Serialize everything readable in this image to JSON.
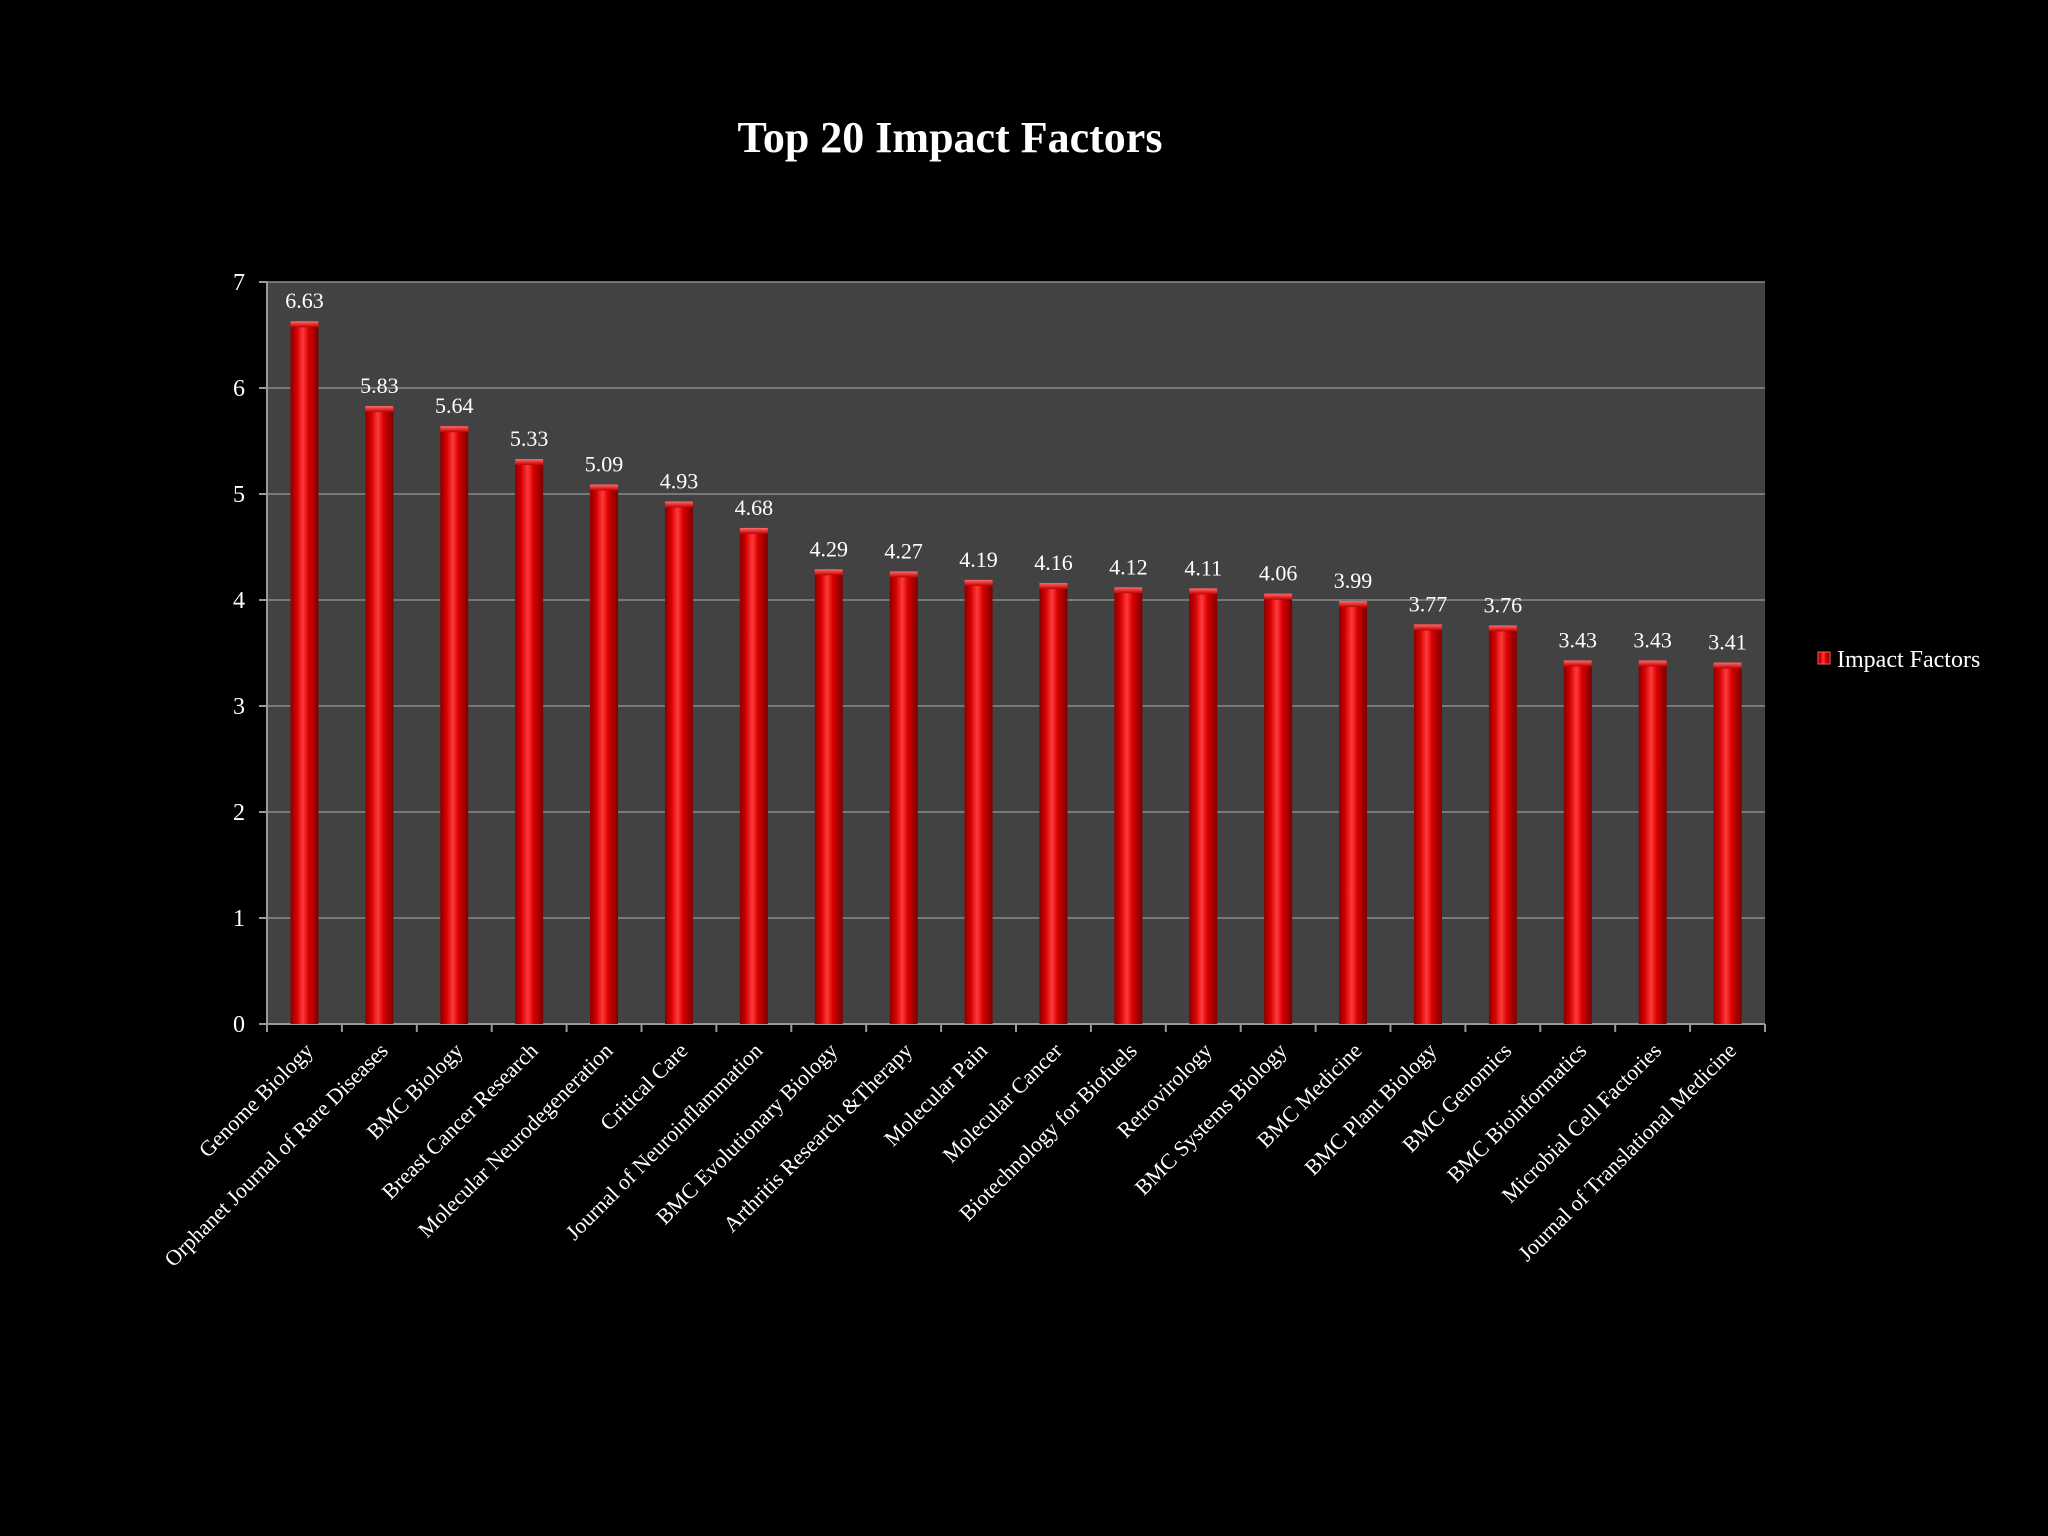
{
  "chart_data": {
    "type": "bar",
    "title": "Top 20 Impact Factors",
    "xlabel": "",
    "ylabel": "",
    "ylim": [
      0,
      7
    ],
    "yticks": [
      "0",
      "1",
      "2",
      "3",
      "4",
      "5",
      "6",
      "7"
    ],
    "grid": true,
    "legend_position": "right",
    "colors": {
      "bar": "#d40000",
      "bar_highlight": "#ff4a4a",
      "bar_shadow": "#7a0000",
      "plot_background": "#424242",
      "page_background": "#000000",
      "gridline": "#8a8a8a",
      "text": "#ffffff"
    },
    "categories": [
      "Genome Biology",
      "Orphanet Journal of Rare Diseases",
      "BMC Biology",
      "Breast Cancer Research",
      "Molecular Neurodegeneration",
      "Critical Care",
      "Journal of Neuroinflammation",
      "BMC Evolutionary Biology",
      "Arthritis Research &Therapy",
      "Molecular Pain",
      "Molecular Cancer",
      "Biotechnology for Biofuels",
      "Retrovirology",
      "BMC Systems Biology",
      "BMC Medicine",
      "BMC Plant Biology",
      "BMC Genomics",
      "BMC Bioinformatics",
      "Microbial Cell Factories",
      "Journal of Translational Medicine"
    ],
    "series": [
      {
        "name": "Impact Factors",
        "values": [
          6.63,
          5.83,
          5.64,
          5.33,
          5.09,
          4.93,
          4.68,
          4.29,
          4.27,
          4.19,
          4.16,
          4.12,
          4.11,
          4.06,
          3.99,
          3.77,
          3.76,
          3.43,
          3.43,
          3.41
        ],
        "labels": [
          "6.63",
          "5.83",
          "5.64",
          "5.33",
          "5.09",
          "4.93",
          "4.68",
          "4.29",
          "4.27",
          "4.19",
          "4.16",
          "4.12",
          "4.11",
          "4.06",
          "3.99",
          "3.77",
          "3.76",
          "3.43",
          "3.43",
          "3.41"
        ]
      }
    ]
  }
}
